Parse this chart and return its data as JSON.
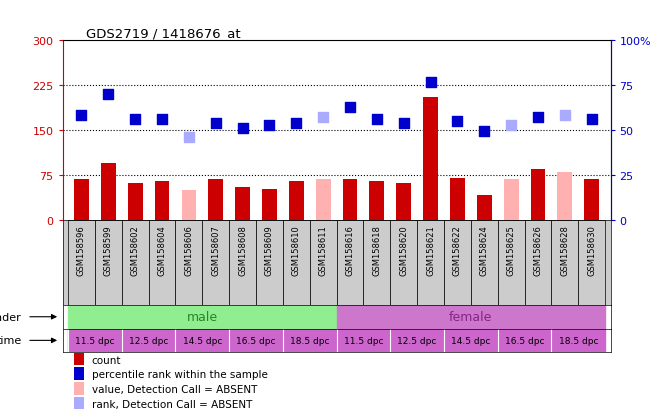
{
  "title": "GDS2719 / 1418676_at",
  "samples": [
    "GSM158596",
    "GSM158599",
    "GSM158602",
    "GSM158604",
    "GSM158606",
    "GSM158607",
    "GSM158608",
    "GSM158609",
    "GSM158610",
    "GSM158611",
    "GSM158616",
    "GSM158618",
    "GSM158620",
    "GSM158621",
    "GSM158622",
    "GSM158624",
    "GSM158625",
    "GSM158626",
    "GSM158628",
    "GSM158630"
  ],
  "bar_values": [
    68,
    95,
    62,
    65,
    0,
    68,
    55,
    52,
    65,
    0,
    68,
    65,
    62,
    205,
    70,
    42,
    0,
    85,
    0,
    68
  ],
  "bar_absent": [
    0,
    0,
    0,
    0,
    50,
    0,
    0,
    0,
    0,
    68,
    0,
    0,
    0,
    0,
    0,
    0,
    68,
    0,
    80,
    0
  ],
  "rank_values": [
    175,
    210,
    168,
    168,
    0,
    162,
    153,
    158,
    162,
    0,
    188,
    168,
    162,
    230,
    165,
    148,
    0,
    172,
    0,
    168
  ],
  "rank_absent": [
    0,
    0,
    0,
    0,
    138,
    0,
    0,
    0,
    0,
    172,
    0,
    0,
    0,
    0,
    0,
    0,
    158,
    0,
    175,
    0
  ],
  "bar_color": "#cc0000",
  "bar_absent_color": "#ffb0b0",
  "rank_color": "#0000cc",
  "rank_absent_color": "#aaaaff",
  "left_ylim": [
    0,
    300
  ],
  "left_yticks": [
    0,
    75,
    150,
    225,
    300
  ],
  "left_yticklabels": [
    "0",
    "75",
    "150",
    "225",
    "300"
  ],
  "right_yticks": [
    0,
    25,
    50,
    75,
    100
  ],
  "right_yticklabels": [
    "0",
    "25",
    "50",
    "75",
    "100%"
  ],
  "hlines": [
    75,
    150,
    225
  ],
  "gender_colors": [
    "#90ee90",
    "#cc77cc"
  ],
  "gender_text_colors": [
    "#228822",
    "#882288"
  ],
  "time_color": "#cc66cc",
  "legend_items": [
    {
      "label": "count",
      "color": "#cc0000"
    },
    {
      "label": "percentile rank within the sample",
      "color": "#0000cc"
    },
    {
      "label": "value, Detection Call = ABSENT",
      "color": "#ffb0b0"
    },
    {
      "label": "rank, Detection Call = ABSENT",
      "color": "#aaaaff"
    }
  ],
  "bar_width": 0.55,
  "rank_marker_size": 55,
  "xticklabel_bg": "#cccccc"
}
